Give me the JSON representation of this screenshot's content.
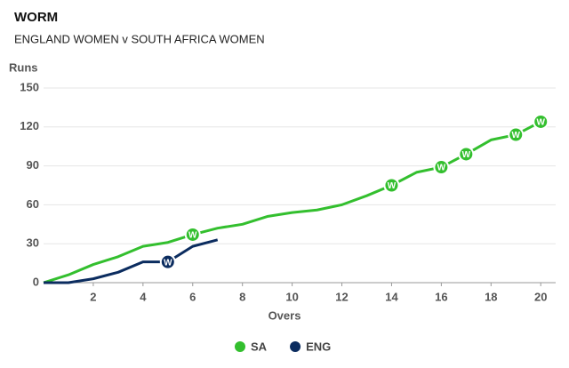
{
  "chart_data": {
    "type": "line",
    "title": "WORM",
    "subtitle": "ENGLAND WOMEN v SOUTH AFRICA WOMEN",
    "y_label": "Runs",
    "x_label": "Overs",
    "wicket_label": "W",
    "xlim": [
      0,
      20.6
    ],
    "xticks": [
      2,
      4,
      6,
      8,
      10,
      12,
      14,
      16,
      18,
      20
    ],
    "ylim": [
      0,
      150
    ],
    "yticks": [
      0,
      30,
      60,
      90,
      120,
      150
    ],
    "grid": true,
    "series": [
      {
        "name": "SA",
        "color": "#33bf2e",
        "x": [
          0,
          1,
          2,
          3,
          4,
          5,
          6,
          7,
          8,
          9,
          10,
          11,
          12,
          13,
          14,
          15,
          16,
          17,
          18,
          19,
          20
        ],
        "values": [
          0,
          6,
          14,
          20,
          28,
          31,
          37,
          42,
          45,
          51,
          54,
          56,
          60,
          67,
          75,
          85,
          89,
          99,
          110,
          114,
          124
        ],
        "wickets": [
          6,
          14,
          16,
          17,
          19,
          20
        ]
      },
      {
        "name": "ENG",
        "color": "#0b2c5f",
        "x": [
          0,
          1,
          2,
          3,
          4,
          5,
          6,
          7
        ],
        "values": [
          0,
          0,
          3,
          8,
          16,
          16,
          28,
          33
        ],
        "wickets": [
          5
        ]
      }
    ]
  }
}
